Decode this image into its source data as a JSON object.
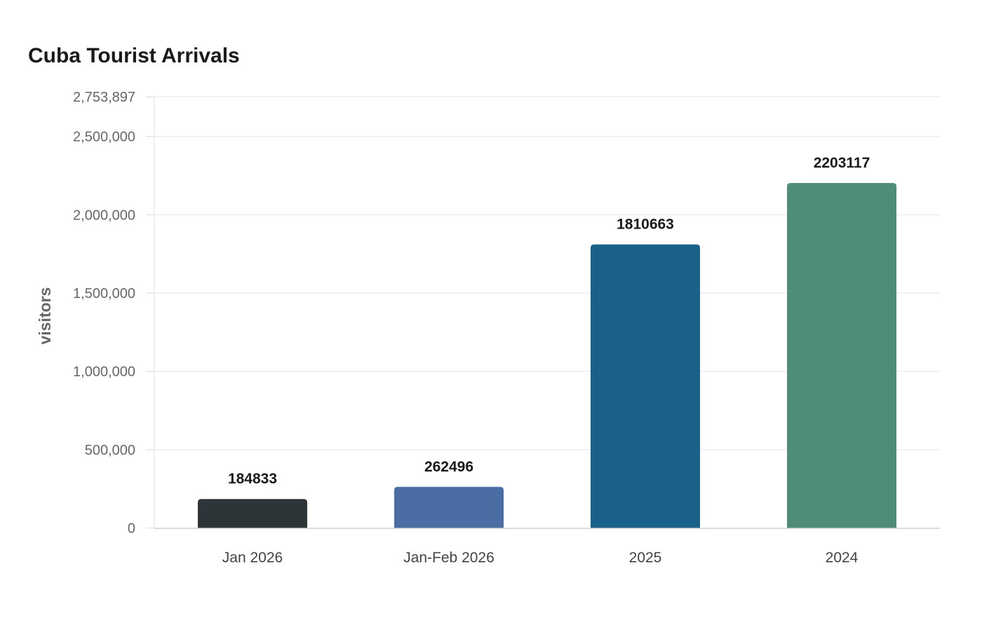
{
  "chart_data": {
    "type": "bar",
    "title": "Cuba Tourist Arrivals",
    "xlabel": "",
    "ylabel": "visitors",
    "categories": [
      "Jan 2026",
      "Jan-Feb 2026",
      "2025",
      "2024"
    ],
    "values": [
      184833,
      262496,
      1810663,
      2203117
    ],
    "data_labels": [
      "184833",
      "262496",
      "1810663",
      "2203117"
    ],
    "bar_colors": [
      "#2d3538",
      "#4a6da3",
      "#196189",
      "#4f8c7a"
    ],
    "ylim": [
      0,
      2753897
    ],
    "y_ticks": [
      0,
      500000,
      1000000,
      1500000,
      2000000,
      2500000,
      2753897
    ],
    "y_tick_labels": [
      "0",
      "500,000",
      "1,000,000",
      "1,500,000",
      "2,000,000",
      "2,500,000",
      "2,753,897"
    ],
    "grid": true,
    "legend": "none"
  }
}
